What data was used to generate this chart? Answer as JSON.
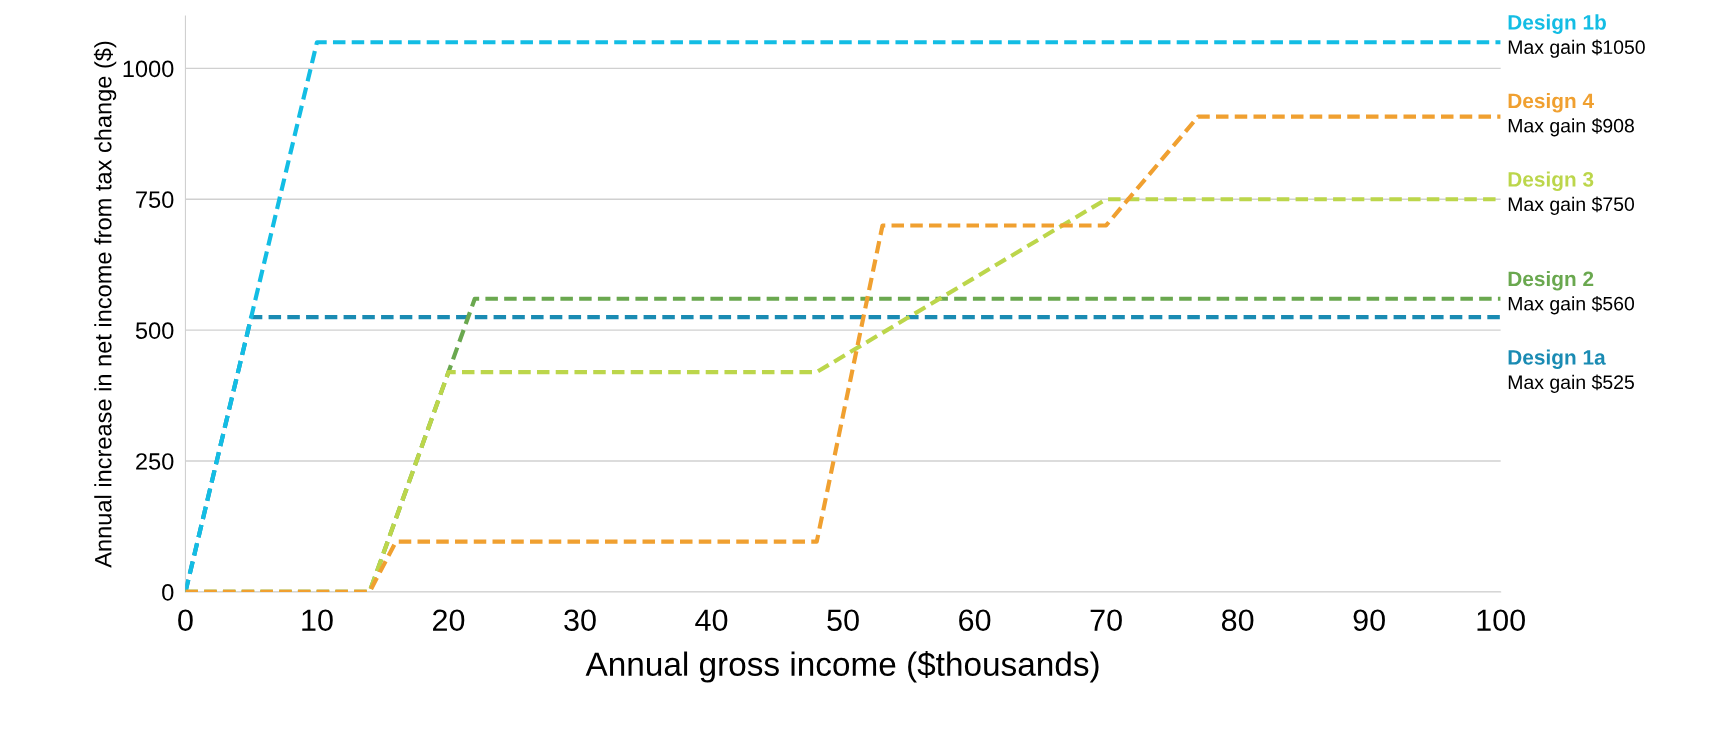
{
  "chart_data": {
    "type": "line",
    "xlabel": "Annual gross income ($thousands)",
    "ylabel": "Annual increase in net income from tax change ($)",
    "xlim": [
      0,
      100
    ],
    "xticks": [
      0,
      10,
      20,
      30,
      40,
      50,
      60,
      70,
      80,
      90,
      100
    ],
    "ylim": [
      0,
      1100
    ],
    "yticks": [
      0,
      250,
      500,
      750,
      1000
    ],
    "grid": "y",
    "legend": false,
    "line_style": "dashed",
    "marker": "none",
    "series": [
      {
        "name": "Design 1a",
        "color": "#1a8bb3",
        "x": [
          0,
          5,
          100
        ],
        "values": [
          0,
          525,
          525
        ]
      },
      {
        "name": "Design 1b",
        "color": "#13bde4",
        "x": [
          0,
          10,
          100
        ],
        "values": [
          0,
          1050,
          1050
        ]
      },
      {
        "name": "Design 2",
        "color": "#6aa84f",
        "x": [
          0,
          14,
          22,
          100
        ],
        "values": [
          0,
          0,
          560,
          560
        ]
      },
      {
        "name": "Design 3",
        "color": "#bcd64b",
        "x": [
          0,
          14,
          20,
          48,
          70,
          100
        ],
        "values": [
          0,
          0,
          420,
          420,
          750,
          750
        ]
      },
      {
        "name": "Design 4",
        "color": "#f0a030",
        "x": [
          0,
          14,
          16,
          48,
          53,
          70,
          77,
          100
        ],
        "values": [
          0,
          0,
          96,
          96,
          700,
          700,
          908,
          908
        ]
      }
    ],
    "annotations": [
      "Max gain $525",
      "Max gain $1050",
      "Max gain $560",
      "Max gain $750",
      "Max gain $908"
    ]
  }
}
